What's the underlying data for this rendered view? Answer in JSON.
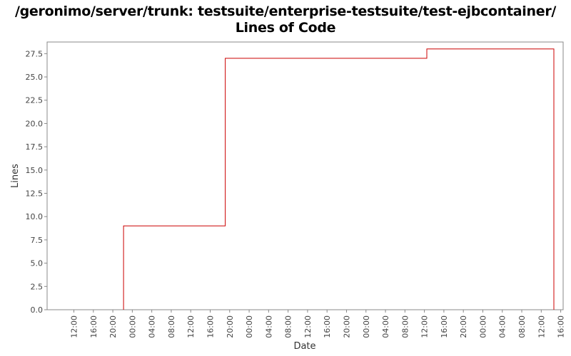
{
  "chart_data": {
    "type": "line",
    "step": true,
    "title_lines": [
      "/geronimo/server/trunk: testsuite/enterprise-testsuite/test-ejbcontainer/",
      "Lines of Code"
    ],
    "xlabel": "Date",
    "ylabel": "Lines",
    "ylim": [
      0,
      28.75
    ],
    "yticks": [
      0.0,
      2.5,
      5.0,
      7.5,
      10.0,
      12.5,
      15.0,
      17.5,
      20.0,
      22.5,
      25.0,
      27.5
    ],
    "ytick_labels": [
      "0.0",
      "2.5",
      "5.0",
      "7.5",
      "10.0",
      "12.5",
      "15.0",
      "17.5",
      "20.0",
      "22.5",
      "25.0",
      "27.5"
    ],
    "xlim_hours": [
      6.5,
      112.5
    ],
    "xticks_hours": [
      12,
      16,
      20,
      24,
      28,
      32,
      36,
      40,
      44,
      48,
      52,
      56,
      60,
      64,
      68,
      72,
      76,
      80,
      84,
      88,
      92,
      96,
      100,
      104,
      108,
      112
    ],
    "xtick_labels": [
      "12:00",
      "16:00",
      "20:00",
      "00:00",
      "04:00",
      "08:00",
      "12:00",
      "16:00",
      "20:00",
      "00:00",
      "04:00",
      "08:00",
      "12:00",
      "16:00",
      "20:00",
      "00:00",
      "04:00",
      "08:00",
      "12:00",
      "16:00",
      "20:00",
      "00:00",
      "04:00",
      "08:00",
      "12:00",
      "16:00"
    ],
    "series": [
      {
        "color": "#cc0000",
        "points": [
          {
            "x": 22.2,
            "y": 0
          },
          {
            "x": 22.2,
            "y": 9
          },
          {
            "x": 43.1,
            "y": 9
          },
          {
            "x": 43.1,
            "y": 27
          },
          {
            "x": 84.5,
            "y": 27
          },
          {
            "x": 84.5,
            "y": 28
          },
          {
            "x": 110.6,
            "y": 28
          },
          {
            "x": 110.6,
            "y": 0
          }
        ]
      }
    ],
    "grid": false,
    "legend": "none"
  }
}
